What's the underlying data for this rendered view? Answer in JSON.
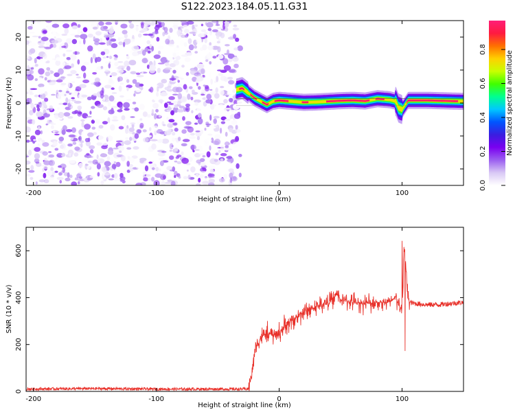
{
  "title": "S122.2023.184.05.11.G31",
  "colorbar": {
    "label": "Normalized spectral amplitude",
    "ticks": [
      "0.0",
      "0.2",
      "0.4",
      "0.6",
      "0.8"
    ],
    "tick_values": [
      0.0,
      0.2,
      0.4,
      0.6,
      0.8
    ],
    "range": [
      0.0,
      0.97
    ],
    "colormap": [
      "#ffffff",
      "#d9c8f5",
      "#9b5ff0",
      "#7a00f0",
      "#3a1ee0",
      "#0055ff",
      "#00c8ff",
      "#00ff90",
      "#40ff00",
      "#c8ff00",
      "#ffd000",
      "#ff7000",
      "#ff1a40",
      "#ff1e78"
    ]
  },
  "chart_data": [
    {
      "type": "heatmap",
      "title": "S122.2023.184.05.11.G31",
      "xlabel": "Height of straight line (km)",
      "ylabel": "Frequency (Hz)",
      "xlim": [
        -206,
        150
      ],
      "ylim": [
        -25,
        25
      ],
      "xticks": [
        "-200",
        "-100",
        "0",
        "100"
      ],
      "xtick_values": [
        -200,
        -100,
        0,
        100
      ],
      "yticks": [
        "-20",
        "-10",
        "0",
        "10",
        "20"
      ],
      "ytick_values": [
        -20,
        -10,
        0,
        10,
        20
      ],
      "noise_region_x": [
        -206,
        -35
      ],
      "noise_amplitude_range": [
        0.0,
        0.2
      ],
      "ridge": {
        "x": [
          -35,
          -30,
          -25,
          -20,
          -15,
          -10,
          -5,
          0,
          10,
          20,
          30,
          40,
          50,
          60,
          70,
          80,
          90,
          95,
          97,
          100,
          105,
          120,
          140,
          150
        ],
        "frequency": [
          4,
          4.5,
          3,
          1.5,
          0.5,
          -0.5,
          0.5,
          0.8,
          0.5,
          0.2,
          0.3,
          0.5,
          0.7,
          0.8,
          0.6,
          1.3,
          1.0,
          0.5,
          -1.5,
          -2,
          0.8,
          0.8,
          0.6,
          0.5
        ],
        "peak_amplitude": 0.95
      }
    },
    {
      "type": "line",
      "xlabel": "Height of straight line (km)",
      "ylabel": "SNR (10 * v/v)",
      "xlim": [
        -206,
        150
      ],
      "ylim": [
        0,
        700
      ],
      "xticks": [
        "-200",
        "-100",
        "0",
        "100"
      ],
      "xtick_values": [
        -200,
        -100,
        0,
        100
      ],
      "yticks": [
        "0",
        "200",
        "400",
        "600"
      ],
      "ytick_values": [
        0,
        200,
        400,
        600
      ],
      "color": "#e8312a",
      "series": [
        {
          "x": [
            -206,
            -150,
            -100,
            -50,
            -25,
            -22,
            -20,
            -15,
            -10,
            -5,
            0,
            5,
            10,
            20,
            30,
            40,
            45,
            47,
            50,
            60,
            70,
            80,
            90,
            95,
            100,
            102,
            104,
            106,
            110,
            120,
            130,
            140,
            150
          ],
          "values": [
            10,
            12,
            10,
            10,
            10,
            80,
            180,
            230,
            250,
            240,
            250,
            280,
            300,
            340,
            360,
            380,
            400,
            420,
            390,
            380,
            375,
            380,
            380,
            400,
            330,
            620,
            450,
            380,
            375,
            370,
            370,
            375,
            380
          ]
        }
      ]
    }
  ]
}
